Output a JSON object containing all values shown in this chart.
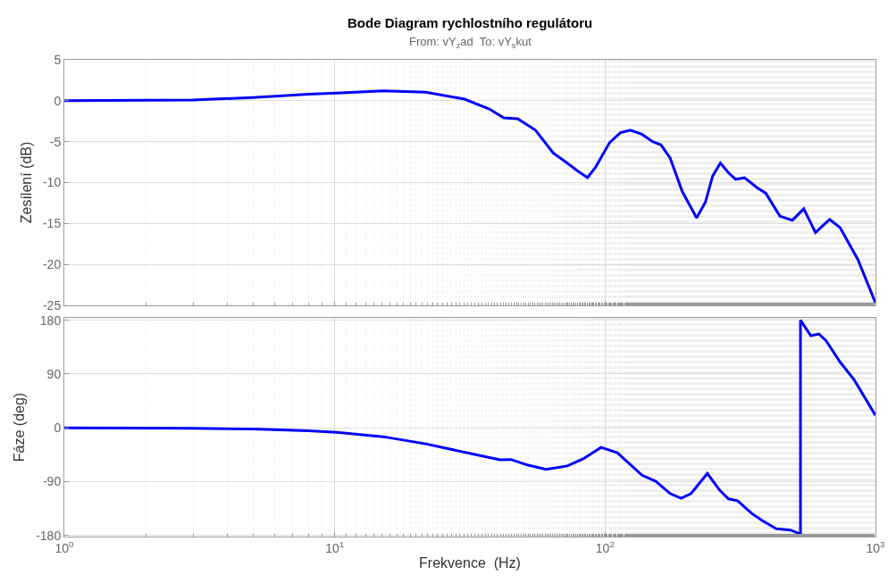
{
  "chart_data": [
    {
      "type": "line",
      "title": "Bode Diagram rychlostního regulátoru",
      "subtitle": "From: vY$_{z}$ad  To: vY$_{s}$kut",
      "ylabel": "Zesílení (dB)",
      "log": "x",
      "grid": true,
      "tick_labels": "y",
      "marker": "none",
      "line_style": "solid",
      "xlim": [
        1,
        1000
      ],
      "xticks": [
        {
          "value": 1,
          "label": null
        },
        {
          "value": 10,
          "label": null
        },
        {
          "value": 100,
          "label": null
        },
        {
          "value": 1000,
          "label": null
        }
      ],
      "ylim": [
        -25,
        5
      ],
      "yticks": [
        -25,
        -20,
        -15,
        -10,
        -5,
        0,
        5
      ],
      "series": [
        {
          "color": "#0000ff",
          "x": [
            1,
            2,
            3,
            5,
            8,
            10.2,
            15.1,
            21.7,
            30.2,
            37.3,
            42.2,
            47.5,
            55.3,
            64.3,
            70.3,
            79.4,
            86.1,
            92.3,
            104,
            114,
            124,
            137,
            150,
            161,
            174,
            193,
            218,
            235,
            250,
            267,
            286,
            304,
            328,
            364,
            393,
            443,
            493,
            543,
            600,
            677,
            740,
            861,
            1000
          ],
          "values": [
            0,
            0.05,
            0.1,
            0.4,
            0.8,
            0.95,
            1.2,
            1.05,
            0.2,
            -1.0,
            -2.1,
            -2.2,
            -3.6,
            -6.4,
            -7.3,
            -8.6,
            -9.4,
            -8.1,
            -5.1,
            -3.9,
            -3.6,
            -4.1,
            -5.0,
            -5.4,
            -7.0,
            -11.1,
            -14.3,
            -12.4,
            -9.2,
            -7.6,
            -8.8,
            -9.6,
            -9.4,
            -10.6,
            -11.3,
            -14.1,
            -14.6,
            -13.2,
            -16.1,
            -14.5,
            -15.5,
            -19.4,
            -24.7
          ]
        }
      ]
    },
    {
      "type": "line",
      "xlabel": "Frekvence  (Hz)",
      "ylabel": "Fáze (deg)",
      "log": "x",
      "grid": true,
      "marker": "none",
      "line_style": "solid",
      "xlim": [
        1,
        1000
      ],
      "xticks": [
        {
          "value": 1,
          "label": "10$^{0}$"
        },
        {
          "value": 10,
          "label": "10$^{1}$"
        },
        {
          "value": 100,
          "label": "10$^{2}$"
        },
        {
          "value": 1000,
          "label": "10$^{3}$"
        }
      ],
      "ylim": [
        -182,
        184
      ],
      "yticks": [
        -180,
        -90,
        0,
        90,
        180
      ],
      "series": [
        {
          "color": "#0000ff",
          "x": [
            1,
            2,
            3,
            5,
            8,
            10.2,
            15.1,
            21.7,
            32.1,
            40.9,
            44.8,
            52,
            60.5,
            72.5,
            83,
            96.6,
            111,
            137,
            154,
            174,
            191,
            208,
            239,
            265,
            286,
            309,
            348,
            381,
            430,
            485,
            523,
            528,
            528,
            577,
            618,
            656,
            740,
            835,
            1000
          ],
          "values": [
            0,
            -0.5,
            -1,
            -2,
            -5,
            -7.7,
            -14.9,
            -26.8,
            -43.5,
            -53.6,
            -53,
            -62.6,
            -69.7,
            -63.8,
            -51.9,
            -32.8,
            -41.7,
            -79.3,
            -89.4,
            -110,
            -118,
            -110,
            -76.3,
            -104,
            -119,
            -122,
            -143,
            -155,
            -169,
            -171,
            -177,
            -180,
            180,
            154,
            157,
            146,
            110,
            80,
            21
          ]
        }
      ]
    }
  ]
}
